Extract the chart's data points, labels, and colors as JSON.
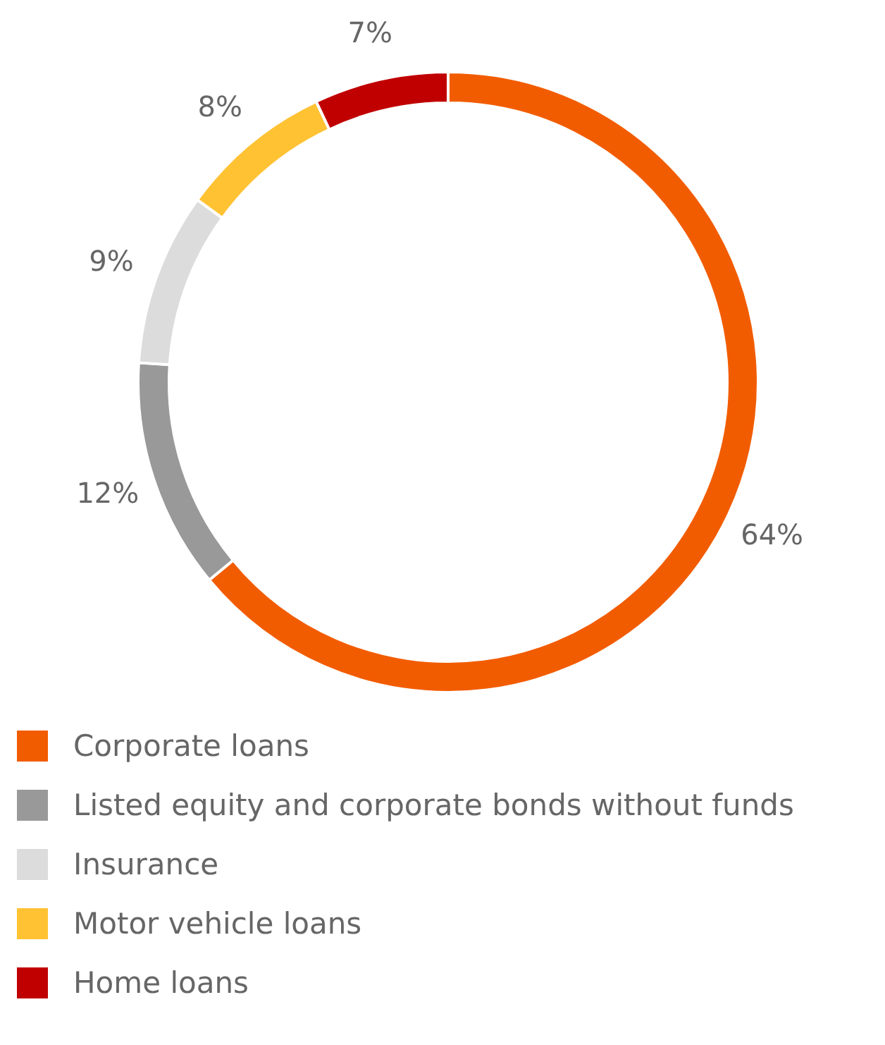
{
  "chart_data": {
    "type": "donut",
    "categories": [
      "Corporate loans",
      "Listed equity and corporate bonds without funds",
      "Insurance",
      "Motor vehicle loans",
      "Home loans"
    ],
    "values": [
      64,
      12,
      9,
      8,
      7
    ],
    "value_labels": [
      "64%",
      "12%",
      "9%",
      "8%",
      "7%"
    ],
    "colors": [
      "#f25c00",
      "#999999",
      "#dcdcdc",
      "#ffc233",
      "#c00000"
    ],
    "legend": "bottom"
  }
}
